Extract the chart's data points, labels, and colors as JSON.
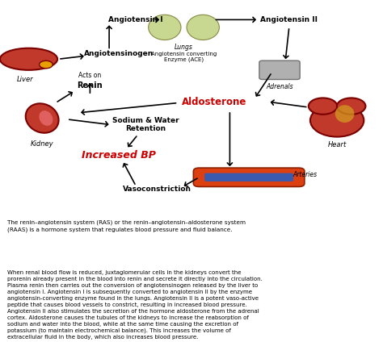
{
  "bg_color": "#ffffff",
  "summary_text": "The renin–angiotensin system (RAS) or the renin–angiotensin–aldosterone system\n(RAAS) is a hormone system that regulates blood pressure and fluid balance.",
  "detail_text": "When renal blood flow is reduced, juxtaglomerular cells in the kidneys convert the\nprorenin already present in the blood into renin and secrete it directly into the circulation.\nPlasma renin then carries out the conversion of angiotensinogen released by the liver to\nangiotensin I. Angiotensin I is subsequently converted to angiotensin II by the enzyme\nangiotensin-converting enzyme found in the lungs. Angiotensin II is a potent vaso-active\npeptide that causes blood vessels to constrict, resulting in increased blood pressure.\nAngiotensin II also stimulates the secretion of the hormone aldosterone from the adrenal\ncortex. Aldosterone causes the tubules of the kidneys to increase the reabsorption of\nsodium and water into the blood, while at the same time causing the excretion of\npotassium (to maintain electrochemical balance). This increases the volume of\nextracellular fluid in the body, which also increases blood pressure.",
  "labels": {
    "liver": "Liver",
    "kidney": "Kidney",
    "lungs": "Lungs",
    "adrenals": "Adrenals",
    "heart": "Heart",
    "arteries": "Arteries",
    "angiotensinogen": "Angiotensinogen",
    "renin": "Renin",
    "acts_on": "Acts on",
    "angiotensin1": "Angiotensin I",
    "angiotensin2": "Angiotensin II",
    "ace": "Angiotensin converting\nEnzyme (ACE)",
    "aldosterone": "Aldosterone",
    "sodium_water": "Sodium & Water\nRetention",
    "increased_bp": "Increased BP",
    "vasoconstriction": "Vasoconstriction"
  },
  "arrow_color": "#000000",
  "aldosterone_color": "#cc0000",
  "increased_bp_color": "#cc0000",
  "label_color": "#000000",
  "italic_label_color": "#000000"
}
